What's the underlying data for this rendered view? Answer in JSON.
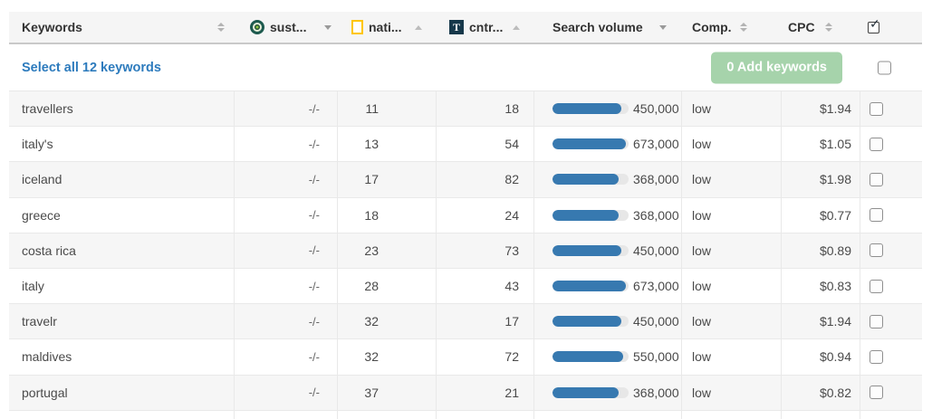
{
  "header": {
    "keywords": {
      "label": "Keywords"
    },
    "sust": {
      "label": "sust..."
    },
    "nati": {
      "label": "nati..."
    },
    "cntr": {
      "label": "cntr...",
      "icon_letter": "T"
    },
    "search_volume": {
      "label": "Search volume"
    },
    "comp": {
      "label": "Comp."
    },
    "cpc": {
      "label": "CPC"
    }
  },
  "icons": {
    "sust": "green-target-favicon",
    "nati": "yellow-rectangle-favicon",
    "cntr": "dark-square-letter-T-favicon",
    "header_select": "checked-checkbox-icon"
  },
  "select_bar": {
    "select_all_label": "Select all 12 keywords",
    "add_button_label": "0 Add keywords"
  },
  "colors": {
    "bar_fill": "#3779b0",
    "bar_track": "#e7e7e7",
    "add_button": "#a6d3ab",
    "link": "#2d7bbd",
    "zebra": "#f6f6f6",
    "header_bg": "#f5f5f5"
  },
  "chart_data": {
    "type": "table",
    "columns": [
      "Keywords",
      "sust...",
      "nati...",
      "cntr...",
      "Search volume",
      "Comp.",
      "CPC"
    ],
    "rows": [
      {
        "keyword": "travellers",
        "sust": "-/-",
        "nati": "11",
        "cntr": "18",
        "volume": "450,000",
        "volume_pct": 90,
        "comp": "low",
        "cpc": "$1.94"
      },
      {
        "keyword": "italy's",
        "sust": "-/-",
        "nati": "13",
        "cntr": "54",
        "volume": "673,000",
        "volume_pct": 96,
        "comp": "low",
        "cpc": "$1.05"
      },
      {
        "keyword": "iceland",
        "sust": "-/-",
        "nati": "17",
        "cntr": "82",
        "volume": "368,000",
        "volume_pct": 87,
        "comp": "low",
        "cpc": "$1.98"
      },
      {
        "keyword": "greece",
        "sust": "-/-",
        "nati": "18",
        "cntr": "24",
        "volume": "368,000",
        "volume_pct": 87,
        "comp": "low",
        "cpc": "$0.77"
      },
      {
        "keyword": "costa rica",
        "sust": "-/-",
        "nati": "23",
        "cntr": "73",
        "volume": "450,000",
        "volume_pct": 90,
        "comp": "low",
        "cpc": "$0.89"
      },
      {
        "keyword": "italy",
        "sust": "-/-",
        "nati": "28",
        "cntr": "43",
        "volume": "673,000",
        "volume_pct": 96,
        "comp": "low",
        "cpc": "$0.83"
      },
      {
        "keyword": "travelr",
        "sust": "-/-",
        "nati": "32",
        "cntr": "17",
        "volume": "450,000",
        "volume_pct": 90,
        "comp": "low",
        "cpc": "$1.94"
      },
      {
        "keyword": "maldives",
        "sust": "-/-",
        "nati": "32",
        "cntr": "72",
        "volume": "550,000",
        "volume_pct": 93,
        "comp": "low",
        "cpc": "$0.94"
      },
      {
        "keyword": "portugal",
        "sust": "-/-",
        "nati": "37",
        "cntr": "21",
        "volume": "368,000",
        "volume_pct": 87,
        "comp": "low",
        "cpc": "$0.82"
      }
    ]
  }
}
